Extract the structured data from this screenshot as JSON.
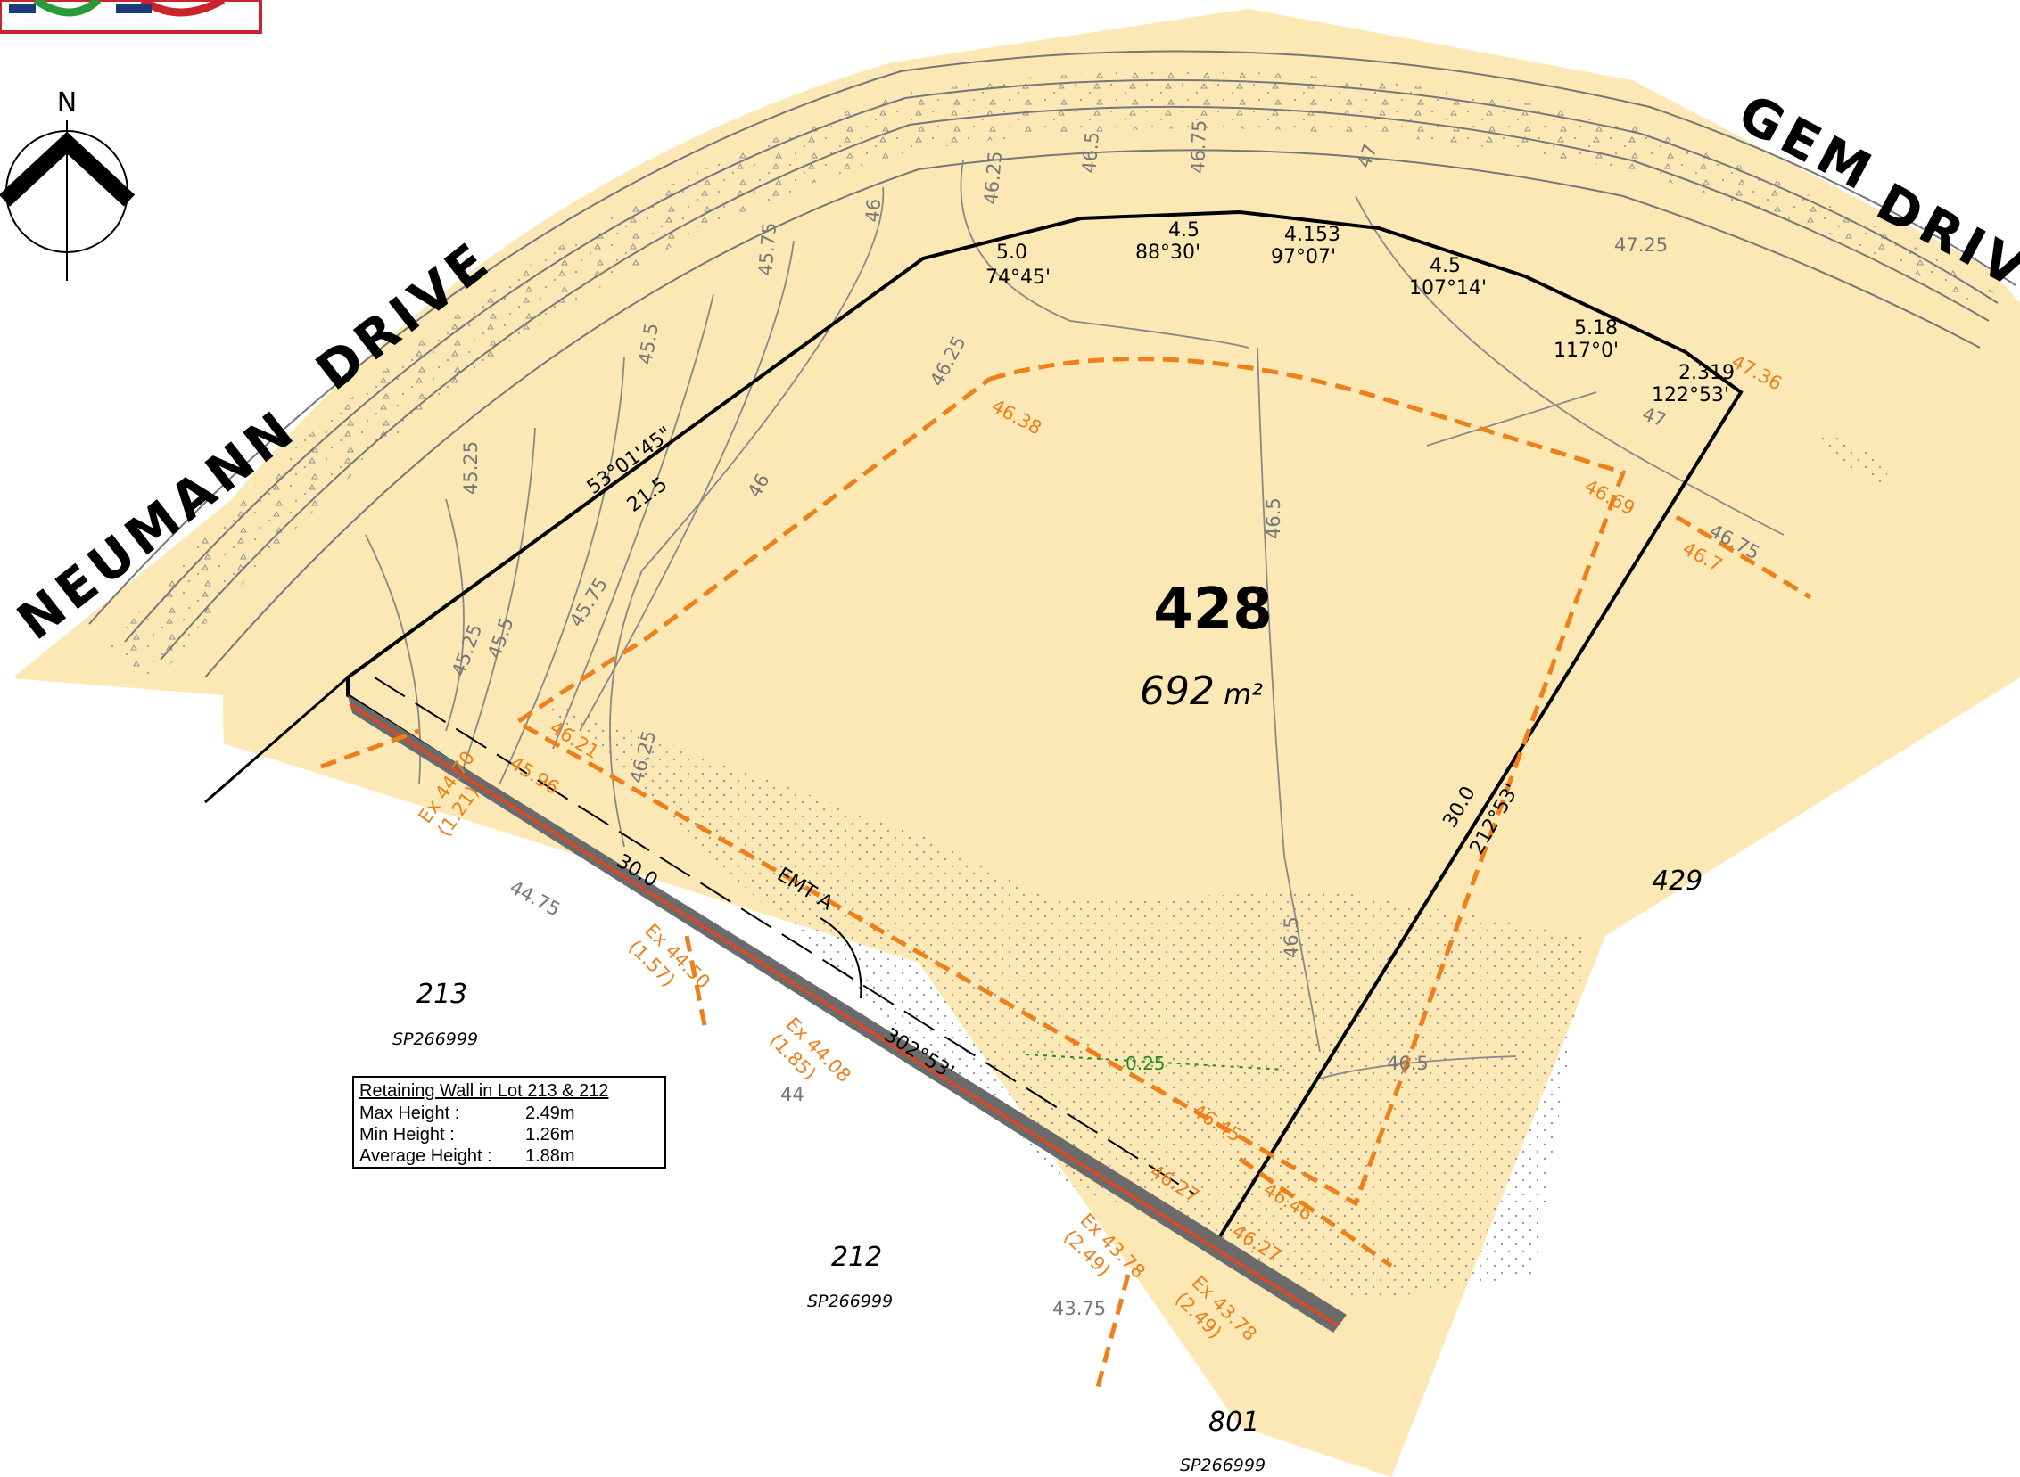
{
  "lot": {
    "number": "428",
    "area": "692",
    "area_unit": "m²"
  },
  "roads": {
    "neumann": "NEUMANN",
    "drive1": "DRIVE",
    "gem": "GEM",
    "drive2": "DRIVE"
  },
  "compass": {
    "north": "N"
  },
  "neighbours": [
    {
      "lot": "213",
      "plan": "SP266999"
    },
    {
      "lot": "212",
      "plan": "SP266999"
    },
    {
      "lot": "801",
      "plan": "SP266999"
    },
    {
      "lot": "429",
      "plan": ""
    }
  ],
  "boundary_labels": {
    "b1_angle": "53°01'45\"",
    "b1_dist": "21.5",
    "b2_dist": "5.0",
    "b2_angle": "74°45'",
    "b3_dist": "4.5",
    "b3_angle": "88°30'",
    "b4_dist": "4.153",
    "b4_angle": "97°07'",
    "b5_dist": "4.5",
    "b5_angle": "107°14'",
    "b6_dist": "5.18",
    "b6_angle": "117°0'",
    "b7_dist": "2.319",
    "b7_angle": "122°53'",
    "east_dist": "30.0",
    "east_angle": "212°53'",
    "south_dist": "30.0",
    "south_angle": "302°53'",
    "easement": "EMT A"
  },
  "contours": [
    "45.25",
    "45.5",
    "45.75",
    "46",
    "46.25",
    "46.5",
    "46.75",
    "47",
    "47.25",
    "45.25",
    "45.5",
    "45.75",
    "46",
    "46.25",
    "46.5",
    "46.5",
    "46.75",
    "47",
    "44.75",
    "44",
    "43.75",
    "46.5",
    "46.25"
  ],
  "design_levels": [
    "46.38",
    "46.69",
    "47.36",
    "46.7",
    "46.21",
    "45.96",
    "46.45",
    "46.27",
    "46.46",
    "46.27"
  ],
  "existing_levels": [
    {
      "level": "Ex 44.70",
      "height": "(1.21)"
    },
    {
      "level": "Ex 44.50",
      "height": "(1.57)"
    },
    {
      "level": "Ex 44.08",
      "height": "(1.85)"
    },
    {
      "level": "Ex 43.78",
      "height": "(2.49)"
    },
    {
      "level": "Ex 43.78",
      "height": "(2.49)"
    }
  ],
  "fall_label": "0.25",
  "retaining_wall": {
    "title": "Retaining Wall in Lot 213 & 212",
    "rows": [
      {
        "k": "Max Height :",
        "v": "2.49m"
      },
      {
        "k": "Min Height :",
        "v": "1.26m"
      },
      {
        "k": "Average Height :",
        "v": "1.88m"
      }
    ]
  },
  "colors": {
    "land": "#fbe8b5",
    "verge": "#fdf0c8",
    "boundary": "#000000",
    "design": "#ee7f1a",
    "wall": "#6b6b6b",
    "wall_edge": "#e8431b"
  }
}
